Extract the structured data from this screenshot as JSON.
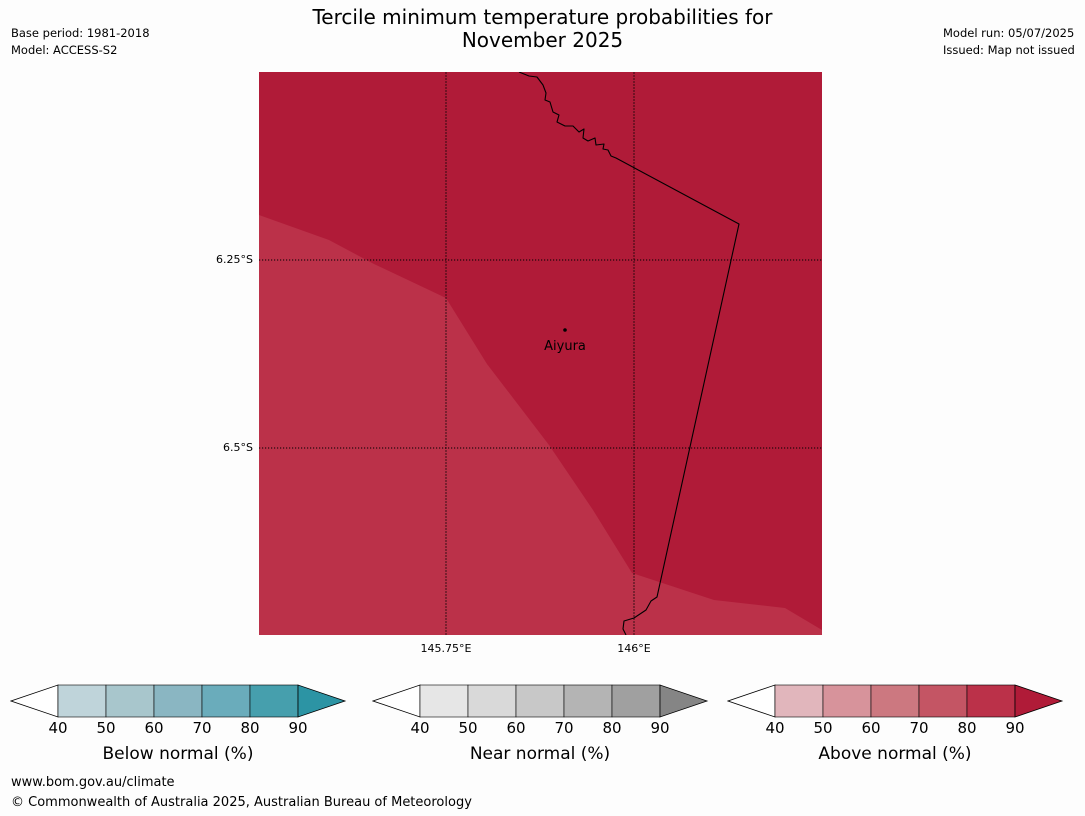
{
  "header": {
    "base_period": "Base period: 1981-2018",
    "model": "Model: ACCESS-S2",
    "title_line1": "Tercile minimum temperature probabilities for",
    "title_line2": "November 2025",
    "model_run": "Model run: 05/07/2025",
    "issued": "Issued: Map not issued"
  },
  "map": {
    "lat_labels": [
      "6.25°S",
      "6.5°S"
    ],
    "lon_labels": [
      "145.75°E",
      "146°E"
    ],
    "place_name": "Aiyura",
    "colors": {
      "region_high": "#b01b38",
      "region_low": "#bb3149",
      "boundary": "#000000",
      "gridline": "#000000"
    }
  },
  "legend": [
    {
      "label": "Below normal (%)",
      "ticks": [
        "40",
        "50",
        "60",
        "70",
        "80",
        "90"
      ],
      "colors": [
        "#ffffff",
        "#bfd4da",
        "#a8c6cc",
        "#8ab6c2",
        "#6aacbb",
        "#469fad",
        "#2c94a4"
      ]
    },
    {
      "label": "Near normal (%)",
      "ticks": [
        "40",
        "50",
        "60",
        "70",
        "80",
        "90"
      ],
      "colors": [
        "#ffffff",
        "#e6e6e6",
        "#d9d9d9",
        "#c8c8c8",
        "#b4b4b4",
        "#a0a0a0",
        "#858585"
      ]
    },
    {
      "label": "Above normal (%)",
      "ticks": [
        "40",
        "50",
        "60",
        "70",
        "80",
        "90"
      ],
      "colors": [
        "#ffffff",
        "#e1b6bc",
        "#d7939b",
        "#cc7880",
        "#c45564",
        "#bb3149",
        "#b01b38"
      ]
    }
  ],
  "footer": {
    "url": "www.bom.gov.au/climate",
    "copyright": "© Commonwealth of Australia 2025, Australian Bureau of Meteorology"
  }
}
